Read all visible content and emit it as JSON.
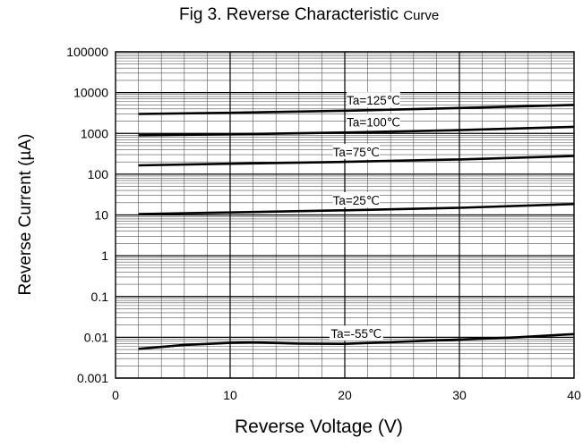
{
  "chart_data": {
    "type": "line",
    "title_main": "Fig 3. Reverse Characteristic",
    "title_suffix": "Curve",
    "xlabel": "Reverse Voltage (V)",
    "ylabel": "Reverse Current    (µA)",
    "xlim": [
      0,
      40
    ],
    "ylim": [
      0.001,
      100000
    ],
    "yscale": "log",
    "grid": true,
    "x_ticks": [
      "0",
      "10",
      "20",
      "30",
      "40"
    ],
    "y_ticks": [
      "0.001",
      "0.01",
      "0.1",
      "1",
      "10",
      "100",
      "1000",
      "10000",
      "100000"
    ],
    "series": [
      {
        "name": "Ta=125℃",
        "x": [
          2,
          10,
          20,
          30,
          40
        ],
        "y": [
          3000,
          3200,
          3600,
          4200,
          5000
        ]
      },
      {
        "name": "Ta=100℃",
        "x": [
          2,
          10,
          20,
          30,
          40
        ],
        "y": [
          900,
          950,
          1050,
          1200,
          1450
        ]
      },
      {
        "name": "Ta=75℃",
        "x": [
          2,
          10,
          20,
          30,
          40
        ],
        "y": [
          165,
          180,
          200,
          230,
          280
        ]
      },
      {
        "name": "Ta=25℃",
        "x": [
          2,
          10,
          20,
          30,
          40
        ],
        "y": [
          10.5,
          11.5,
          13,
          15,
          18.5
        ]
      },
      {
        "name": "Ta=-55℃",
        "x": [
          2,
          6,
          10,
          12,
          16,
          20,
          25,
          30,
          35,
          40
        ],
        "y": [
          0.0052,
          0.0065,
          0.0073,
          0.0075,
          0.007,
          0.0069,
          0.0078,
          0.0088,
          0.01,
          0.012
        ]
      }
    ]
  }
}
